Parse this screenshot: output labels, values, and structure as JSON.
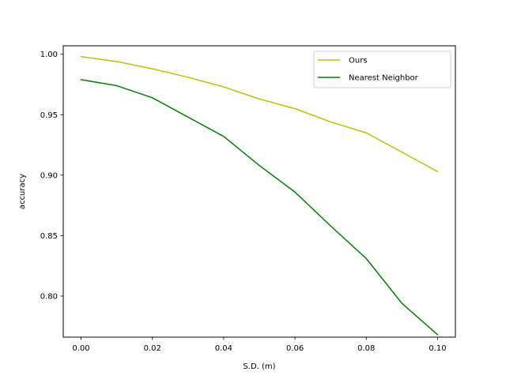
{
  "chart_data": {
    "type": "line",
    "title": "",
    "xlabel": "S.D. (m)",
    "ylabel": "accuracy",
    "xlim": [
      -0.005,
      0.105
    ],
    "ylim": [
      0.766,
      1.007
    ],
    "xticks": [
      0.0,
      0.02,
      0.04,
      0.06,
      0.08,
      0.1
    ],
    "xtick_labels": [
      "0.00",
      "0.02",
      "0.04",
      "0.06",
      "0.08",
      "0.10"
    ],
    "yticks": [
      0.8,
      0.85,
      0.9,
      0.95,
      1.0
    ],
    "ytick_labels": [
      "0.80",
      "0.85",
      "0.90",
      "0.95",
      "1.00"
    ],
    "grid": false,
    "legend_position": "top-right",
    "x": [
      0.0,
      0.01,
      0.02,
      0.03,
      0.04,
      0.05,
      0.06,
      0.07,
      0.08,
      0.09,
      0.1
    ],
    "series": [
      {
        "name": "Ours",
        "color": "#bfbf00",
        "values": [
          0.998,
          0.994,
          0.988,
          0.981,
          0.973,
          0.963,
          0.955,
          0.944,
          0.935,
          0.919,
          0.903
        ]
      },
      {
        "name": "Nearest Neighbor",
        "color": "#008000",
        "values": [
          0.979,
          0.974,
          0.964,
          0.948,
          0.932,
          0.908,
          0.886,
          0.858,
          0.831,
          0.794,
          0.768
        ]
      }
    ]
  }
}
